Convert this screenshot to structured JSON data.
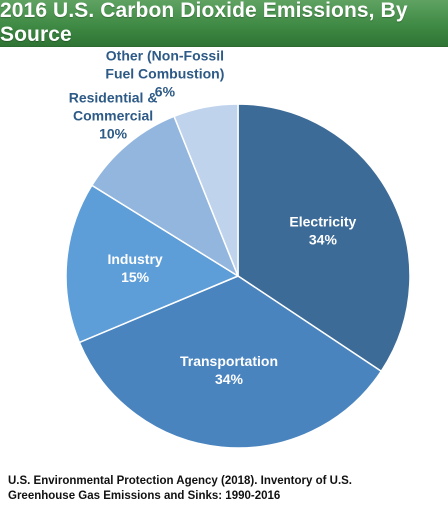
{
  "header": {
    "title": "2016 U.S. Carbon Dioxide Emissions, By Source"
  },
  "chart_data": {
    "type": "pie",
    "title": "2016 U.S. Carbon Dioxide Emissions, By Source",
    "categories": [
      "Electricity",
      "Transportation",
      "Industry",
      "Residential & Commercial",
      "Other (Non-Fossil Fuel Combustion)"
    ],
    "values": [
      34,
      34,
      15,
      10,
      6
    ],
    "slices": [
      {
        "name": "Electricity",
        "value": 34,
        "label_lines": [
          "Electricity",
          "34%"
        ],
        "color": "#3d6b97",
        "label_color": "#ffffff"
      },
      {
        "name": "Transportation",
        "value": 34,
        "label_lines": [
          "Transportation",
          "34%"
        ],
        "color": "#4a84bf",
        "label_color": "#ffffff"
      },
      {
        "name": "Industry",
        "value": 15,
        "label_lines": [
          "Industry",
          "15%"
        ],
        "color": "#5d9dd8",
        "label_color": "#ffffff"
      },
      {
        "name": "Residential & Commercial",
        "value": 10,
        "label_lines": [
          "Residential &",
          "Commercial",
          "10%"
        ],
        "color": "#93b6df",
        "label_color": "#2d5a86"
      },
      {
        "name": "Other (Non-Fossil Fuel Combustion)",
        "value": 6,
        "label_lines": [
          "Other (Non-Fossil",
          "Fuel Combustion)",
          "6%"
        ],
        "color": "#bfd3ec",
        "label_color": "#2d5a86"
      }
    ]
  },
  "source": {
    "line1": "U.S. Environmental Protection Agency (2018). Inventory of U.S.",
    "line2": "Greenhouse Gas Emissions and Sinks: 1990-2016"
  },
  "colors": {
    "title_bar": "#3f8a44",
    "title_text": "#ffffff"
  }
}
